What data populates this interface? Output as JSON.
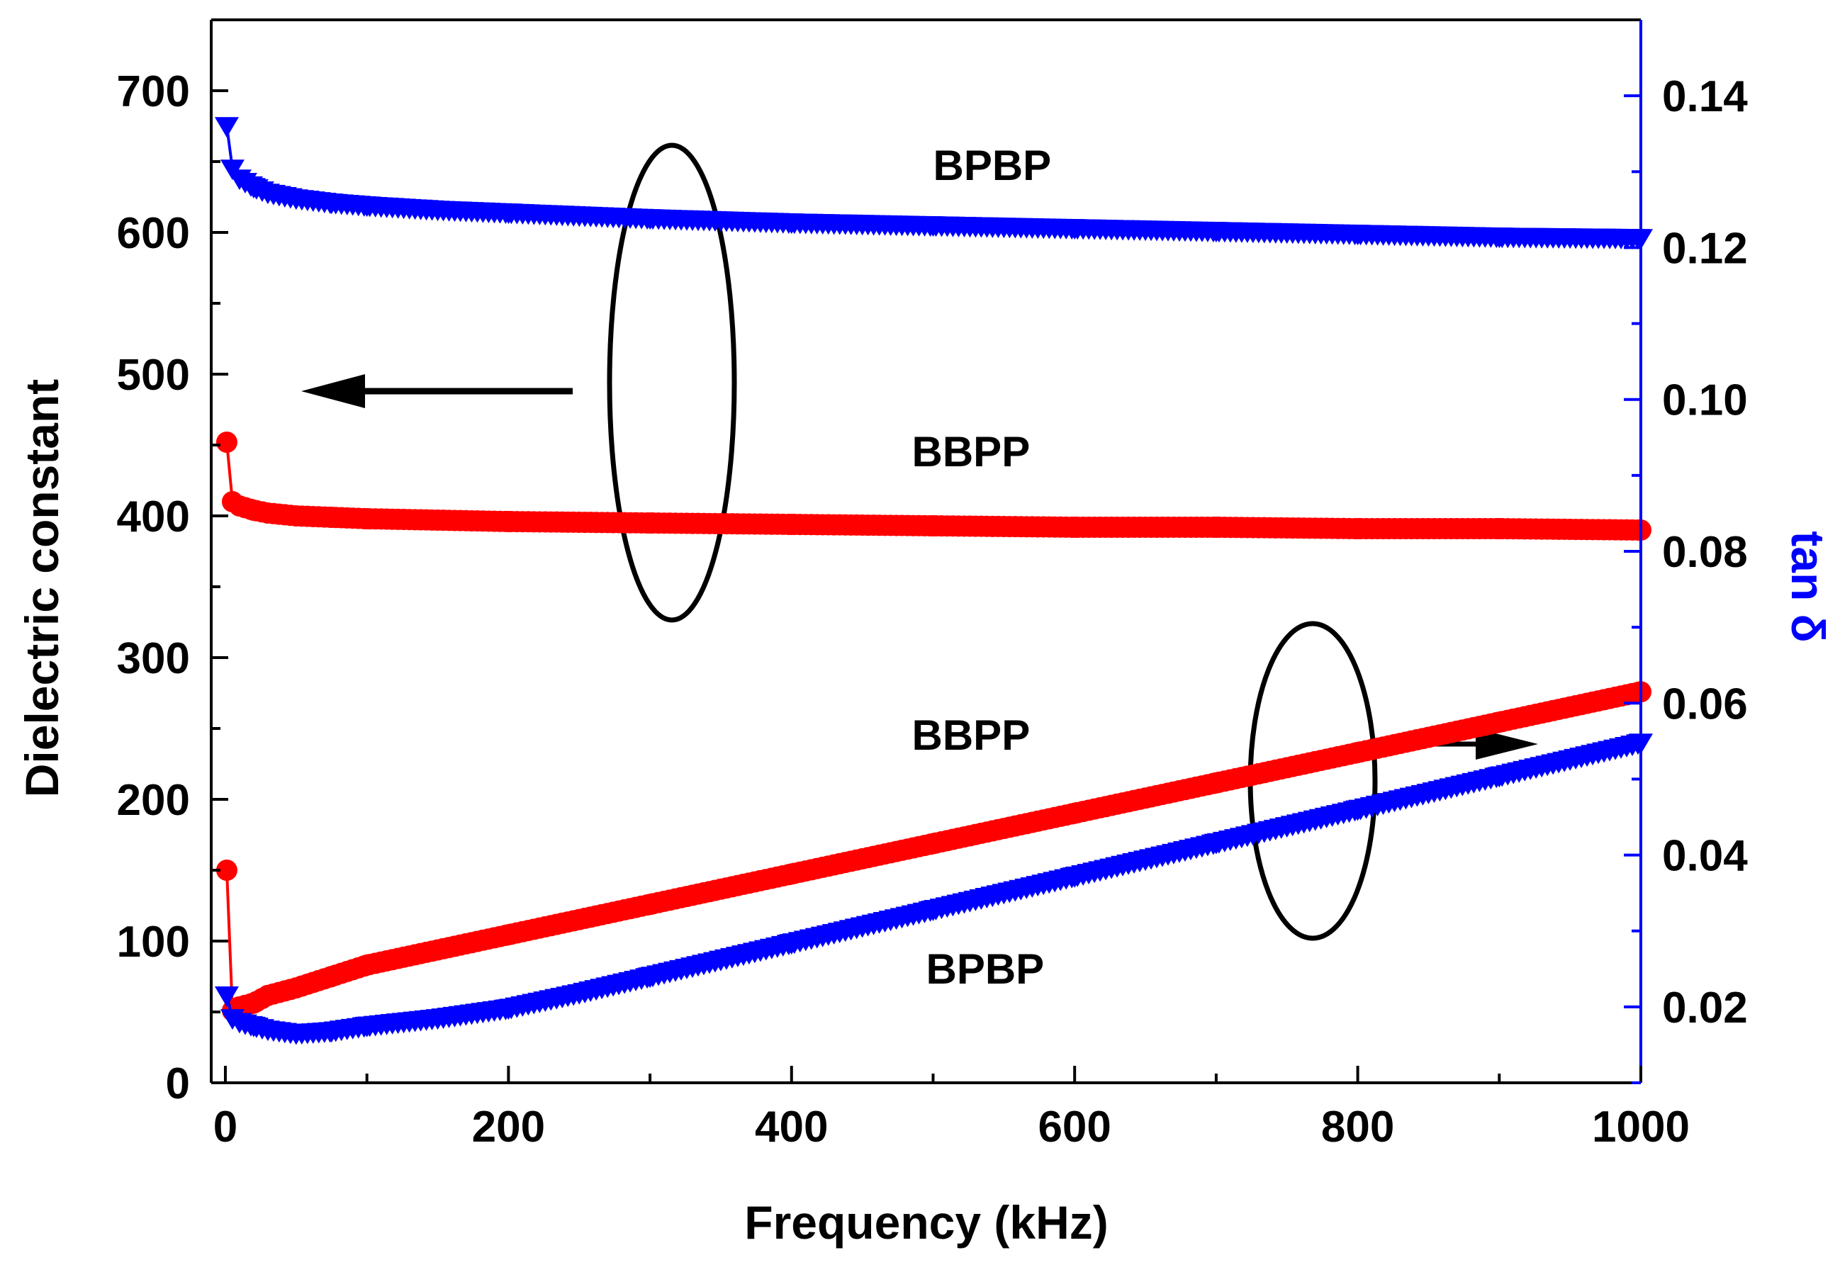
{
  "chart_data": {
    "type": "scatter",
    "xlabel": "Frequency (kHz)",
    "ylabel": "Dielectric constant",
    "y2label": "tan δ",
    "xlim": [
      -10,
      1000
    ],
    "ylim": [
      0,
      750
    ],
    "y2lim": [
      0.01,
      0.15
    ],
    "x_ticks": [
      0,
      200,
      400,
      600,
      800,
      1000
    ],
    "y_ticks": [
      0,
      100,
      200,
      300,
      400,
      500,
      600,
      700
    ],
    "y2_ticks": [
      0.02,
      0.04,
      0.06,
      0.08,
      0.1,
      0.12,
      0.14
    ],
    "x_tick_labels": [
      "0",
      "200",
      "400",
      "600",
      "800",
      "1000"
    ],
    "y_tick_labels": [
      "0",
      "100",
      "200",
      "300",
      "400",
      "500",
      "600",
      "700"
    ],
    "y2_tick_labels": [
      "0.02",
      "0.04",
      "0.06",
      "0.08",
      "0.10",
      "0.12",
      "0.14"
    ],
    "series": [
      {
        "name": "BPBP dielectric constant",
        "axis": "left",
        "marker": "triangle-down",
        "color": "#0000ff",
        "x": [
          1,
          5,
          10,
          20,
          30,
          50,
          75,
          100,
          150,
          200,
          300,
          400,
          500,
          600,
          700,
          800,
          900,
          1000
        ],
        "y": [
          675,
          645,
          638,
          632,
          628,
          624,
          621,
          619,
          616,
          614,
          610,
          607,
          605,
          603,
          601,
          599,
          597,
          596
        ]
      },
      {
        "name": "BBPP dielectric constant",
        "axis": "left",
        "marker": "circle",
        "color": "#ff0000",
        "x": [
          1,
          5,
          10,
          20,
          30,
          50,
          75,
          100,
          150,
          200,
          300,
          400,
          500,
          600,
          700,
          800,
          900,
          1000
        ],
        "y": [
          452,
          410,
          407,
          404,
          402,
          400,
          399,
          398,
          397,
          396,
          395,
          394,
          393,
          392,
          392,
          391,
          391,
          390
        ]
      },
      {
        "name": "BBPP tan δ",
        "axis": "right",
        "marker": "circle",
        "color": "#ff0000",
        "x": [
          1,
          5,
          10,
          20,
          30,
          50,
          75,
          100,
          150,
          200,
          250,
          300,
          350,
          400,
          450,
          500,
          550,
          600,
          650,
          700,
          750,
          800,
          850,
          900,
          950,
          1000
        ],
        "y": [
          0.038,
          0.0195,
          0.02,
          0.0205,
          0.0215,
          0.0225,
          0.024,
          0.0255,
          0.0275,
          0.0295,
          0.0315,
          0.0335,
          0.0355,
          0.0375,
          0.0395,
          0.0415,
          0.0435,
          0.0455,
          0.0475,
          0.0495,
          0.0515,
          0.0535,
          0.0555,
          0.0575,
          0.0595,
          0.0615
        ]
      },
      {
        "name": "BPBP tan δ",
        "axis": "right",
        "marker": "triangle-down",
        "color": "#0000ff",
        "x": [
          1,
          5,
          10,
          20,
          30,
          50,
          75,
          100,
          150,
          200,
          250,
          300,
          350,
          400,
          450,
          500,
          550,
          600,
          650,
          700,
          750,
          800,
          850,
          900,
          950,
          1000
        ],
        "y": [
          0.0215,
          0.0185,
          0.018,
          0.0175,
          0.017,
          0.0165,
          0.0168,
          0.0175,
          0.0185,
          0.0198,
          0.0218,
          0.024,
          0.0262,
          0.0284,
          0.0306,
          0.0328,
          0.035,
          0.0372,
          0.0394,
          0.0416,
          0.0438,
          0.046,
          0.0482,
          0.0504,
          0.0526,
          0.0548
        ]
      }
    ],
    "annotations": [
      {
        "text": "BPBP",
        "x": 500,
        "y": 637,
        "axis": "left"
      },
      {
        "text": "BBPP",
        "x": 485,
        "y": 435,
        "axis": "left"
      },
      {
        "text": "BBPP",
        "x": 485,
        "y": 235,
        "axis": "left"
      },
      {
        "text": "BPBP",
        "x": 495,
        "y": 70,
        "axis": "left"
      }
    ]
  }
}
